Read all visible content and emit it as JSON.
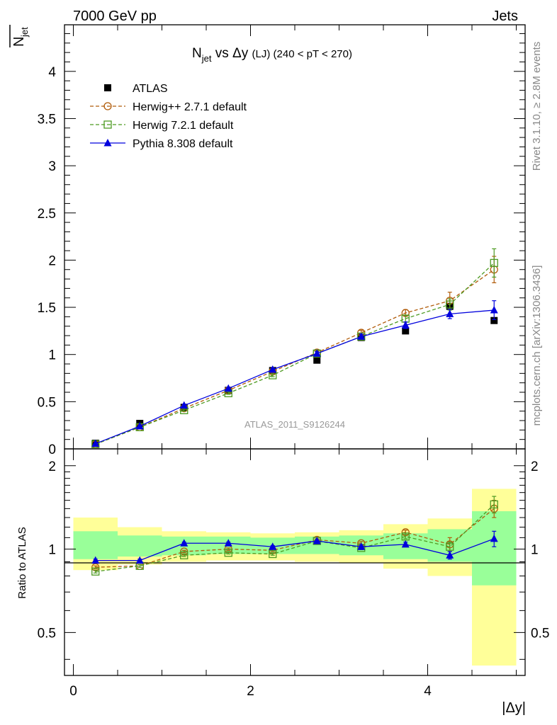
{
  "header": {
    "left": "7000 GeV pp",
    "right": "Jets"
  },
  "side_labels": {
    "rivet": "Rivet 3.1.10, ≥ 2.8M events",
    "mcplots": "mcplots.cern.ch [arXiv:1306.3436]"
  },
  "chart_data": {
    "type": "line",
    "title": {
      "main": "N",
      "main_sub": "jet",
      "mid": " vs Δy ",
      "small": "(LJ)",
      "rest": " (240 < pT < 270)"
    },
    "ylabel": {
      "bar": "N",
      "sub": "jet"
    },
    "xlabel": "|Δy|",
    "ratio_ylabel": "Ratio to ATLAS",
    "watermark": "ATLAS_2011_S9126244",
    "x": [
      0.25,
      0.75,
      1.25,
      1.75,
      2.25,
      2.75,
      3.25,
      3.75,
      4.25,
      4.75
    ],
    "xlim": [
      -0.1,
      5.1
    ],
    "ylim": [
      0,
      4.5
    ],
    "yticks": [
      0,
      0.5,
      1,
      1.5,
      2,
      2.5,
      3,
      3.5,
      4
    ],
    "yticklabels": [
      "0",
      "0.5",
      "1",
      "1.5",
      "2",
      "2.5",
      "3",
      "3.5",
      "4"
    ],
    "xticks": [
      0,
      2,
      4
    ],
    "xticklabels": [
      "0",
      "2",
      "4"
    ],
    "ratio_ylim": [
      0.35,
      2.3
    ],
    "ratio_yticks": [
      0.5,
      1,
      2
    ],
    "ratio_yticklabels": [
      "0.5",
      "1",
      "2"
    ],
    "series": [
      {
        "name": "ATLAS",
        "color": "#000000",
        "marker": "square-filled",
        "dash": "none",
        "values": [
          0.06,
          0.27,
          0.44,
          0.62,
          0.83,
          0.94,
          1.18,
          1.25,
          1.51,
          1.36
        ],
        "errors": [
          0,
          0,
          0,
          0,
          0,
          0,
          0,
          0,
          0,
          0
        ]
      },
      {
        "name": "Herwig++ 2.7.1 default",
        "color": "#b15c0a",
        "marker": "circle-open",
        "dash": "dashed",
        "values": [
          0.05,
          0.23,
          0.43,
          0.62,
          0.82,
          1.02,
          1.23,
          1.44,
          1.57,
          1.9
        ],
        "errors": [
          0.003,
          0.006,
          0.01,
          0.012,
          0.015,
          0.02,
          0.025,
          0.035,
          0.09,
          0.14
        ]
      },
      {
        "name": "Herwig 7.2.1 default",
        "color": "#4d9a22",
        "marker": "square-open",
        "dash": "dashed",
        "values": [
          0.05,
          0.23,
          0.41,
          0.59,
          0.78,
          1.01,
          1.19,
          1.38,
          1.53,
          1.97
        ],
        "errors": [
          0.003,
          0.006,
          0.01,
          0.012,
          0.015,
          0.02,
          0.025,
          0.035,
          0.06,
          0.15
        ]
      },
      {
        "name": "Pythia 8.308 default",
        "color": "#0000dd",
        "marker": "triangle-filled",
        "dash": "none",
        "values": [
          0.055,
          0.24,
          0.46,
          0.64,
          0.84,
          1.01,
          1.19,
          1.31,
          1.43,
          1.47
        ],
        "errors": [
          0.003,
          0.006,
          0.01,
          0.012,
          0.015,
          0.02,
          0.025,
          0.035,
          0.05,
          0.1
        ]
      }
    ],
    "ratio_series": [
      {
        "name": "Herwig++ 2.7.1 default",
        "values": [
          0.86,
          0.87,
          0.98,
          1.0,
          0.99,
          1.08,
          1.05,
          1.15,
          1.04,
          1.4
        ],
        "errors": [
          0.01,
          0.01,
          0.01,
          0.01,
          0.01,
          0.01,
          0.015,
          0.02,
          0.06,
          0.1
        ]
      },
      {
        "name": "Herwig 7.2.1 default",
        "values": [
          0.83,
          0.87,
          0.95,
          0.97,
          0.96,
          1.07,
          1.01,
          1.11,
          1.02,
          1.45
        ],
        "errors": [
          0.01,
          0.01,
          0.01,
          0.01,
          0.01,
          0.01,
          0.015,
          0.02,
          0.04,
          0.1
        ]
      },
      {
        "name": "Pythia 8.308 default",
        "values": [
          0.91,
          0.91,
          1.05,
          1.05,
          1.02,
          1.07,
          1.02,
          1.04,
          0.95,
          1.09
        ],
        "errors": [
          0.01,
          0.01,
          0.01,
          0.01,
          0.01,
          0.01,
          0.015,
          0.02,
          0.03,
          0.07
        ]
      }
    ],
    "bands": {
      "edges": [
        0.0,
        0.5,
        1.0,
        1.5,
        2.0,
        2.5,
        3.0,
        3.5,
        4.0,
        4.5,
        5.0
      ],
      "yellow_lo": [
        0.84,
        0.88,
        0.9,
        0.91,
        0.91,
        0.9,
        0.89,
        0.85,
        0.8,
        0.38
      ],
      "yellow_hi": [
        1.3,
        1.2,
        1.16,
        1.15,
        1.14,
        1.15,
        1.17,
        1.23,
        1.29,
        1.65
      ],
      "green_lo": [
        0.92,
        0.94,
        0.95,
        0.96,
        0.96,
        0.96,
        0.95,
        0.92,
        0.9,
        0.74
      ],
      "green_hi": [
        1.16,
        1.12,
        1.11,
        1.11,
        1.1,
        1.11,
        1.12,
        1.14,
        1.18,
        1.37
      ]
    }
  }
}
